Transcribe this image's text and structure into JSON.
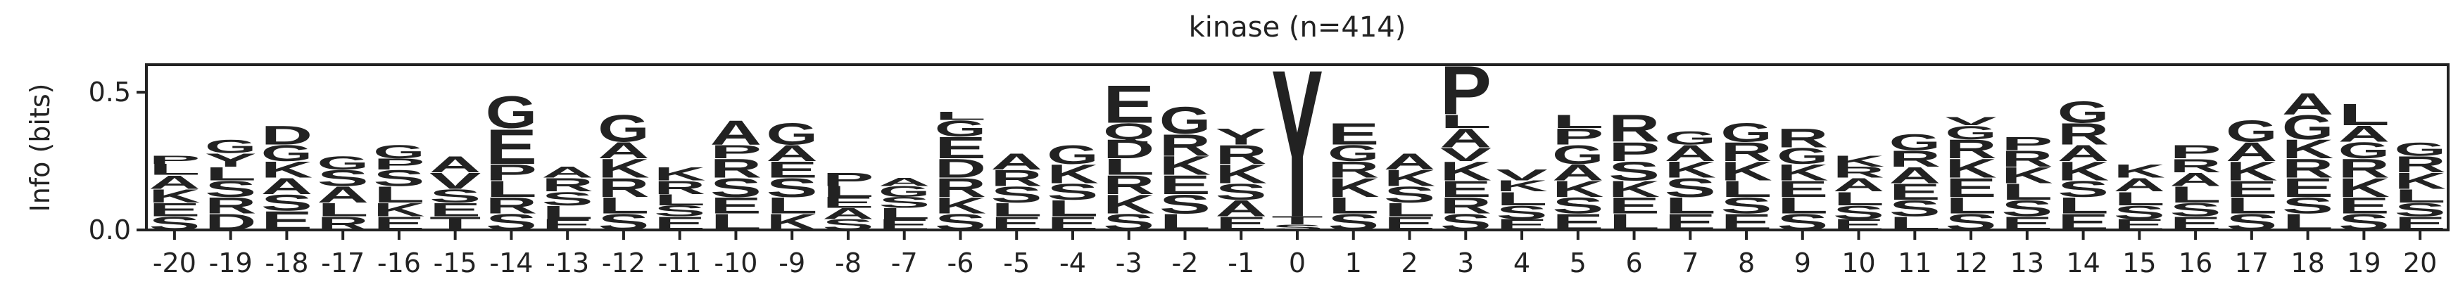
{
  "chart_data": {
    "type": "sequence-logo",
    "title": "kinase (n=414)",
    "y_label": "Info (bits)",
    "xlim": [
      -20.5,
      20.5
    ],
    "ylim": [
      0,
      0.6
    ],
    "xticks": [
      -20,
      -19,
      -18,
      -17,
      -16,
      -15,
      -14,
      -13,
      -12,
      -11,
      -10,
      -9,
      -8,
      -7,
      -6,
      -5,
      -4,
      -3,
      -2,
      -1,
      0,
      1,
      2,
      3,
      4,
      5,
      6,
      7,
      8,
      9,
      10,
      11,
      12,
      13,
      14,
      15,
      16,
      17,
      18,
      19,
      20
    ],
    "yticks": [
      {
        "value": 0,
        "label": "0.0"
      },
      0.5
    ],
    "colors": {
      "G": "#0c8a0c",
      "A": "#0c8a0c",
      "S": "#2ca02c",
      "T": "#2ca02c",
      "E": "#e31a1c",
      "D": "#e31a1c",
      "K": "#1f3fd6",
      "R": "#1f3fd6",
      "P": "#000000",
      "L": "#d4a017",
      "V": "#d4a017",
      "Y": "#d4a017",
      "Q": "#9b30d9"
    },
    "highlight_position": 0,
    "highlight_color": "#8b3a0f",
    "positions": [
      {
        "x": -20,
        "letters": [
          "S",
          "E",
          "K",
          "A",
          "L",
          "P"
        ],
        "heights": [
          0.05,
          0.05,
          0.05,
          0.05,
          0.04,
          0.03
        ]
      },
      {
        "x": -19,
        "letters": [
          "D",
          "R",
          "S",
          "L",
          "Y",
          "G"
        ],
        "heights": [
          0.06,
          0.06,
          0.06,
          0.05,
          0.05,
          0.05
        ]
      },
      {
        "x": -18,
        "letters": [
          "E",
          "S",
          "A",
          "K",
          "G",
          "D"
        ],
        "heights": [
          0.07,
          0.06,
          0.06,
          0.06,
          0.06,
          0.07
        ]
      },
      {
        "x": -17,
        "letters": [
          "R",
          "L",
          "A",
          "S",
          "G"
        ],
        "heights": [
          0.05,
          0.05,
          0.06,
          0.06,
          0.05
        ]
      },
      {
        "x": -16,
        "letters": [
          "E",
          "K",
          "L",
          "S",
          "P",
          "G"
        ],
        "heights": [
          0.05,
          0.05,
          0.06,
          0.06,
          0.04,
          0.05
        ]
      },
      {
        "x": -15,
        "letters": [
          "T",
          "E",
          "S",
          "V",
          "A"
        ],
        "heights": [
          0.05,
          0.05,
          0.05,
          0.06,
          0.06
        ]
      },
      {
        "x": -14,
        "letters": [
          "S",
          "R",
          "L",
          "P",
          "E",
          "G"
        ],
        "heights": [
          0.06,
          0.06,
          0.06,
          0.06,
          0.13,
          0.12
        ]
      },
      {
        "x": -13,
        "letters": [
          "E",
          "L",
          "S",
          "R",
          "A"
        ],
        "heights": [
          0.04,
          0.05,
          0.05,
          0.05,
          0.04
        ]
      },
      {
        "x": -12,
        "letters": [
          "S",
          "L",
          "R",
          "K",
          "A",
          "G"
        ],
        "heights": [
          0.06,
          0.06,
          0.07,
          0.07,
          0.06,
          0.1
        ]
      },
      {
        "x": -11,
        "letters": [
          "E",
          "S",
          "L",
          "R",
          "K"
        ],
        "heights": [
          0.05,
          0.04,
          0.04,
          0.05,
          0.05
        ]
      },
      {
        "x": -10,
        "letters": [
          "L",
          "E",
          "S",
          "R",
          "P",
          "A"
        ],
        "heights": [
          0.06,
          0.06,
          0.07,
          0.07,
          0.05,
          0.09
        ]
      },
      {
        "x": -9,
        "letters": [
          "K",
          "L",
          "S",
          "E",
          "A",
          "G"
        ],
        "heights": [
          0.06,
          0.06,
          0.07,
          0.06,
          0.06,
          0.08
        ]
      },
      {
        "x": -8,
        "letters": [
          "S",
          "A",
          "E",
          "L",
          "P"
        ],
        "heights": [
          0.04,
          0.04,
          0.04,
          0.04,
          0.05
        ]
      },
      {
        "x": -7,
        "letters": [
          "E",
          "L",
          "S",
          "G",
          "A"
        ],
        "heights": [
          0.04,
          0.04,
          0.04,
          0.04,
          0.03
        ]
      },
      {
        "x": -6,
        "letters": [
          "S",
          "K",
          "R",
          "D",
          "E",
          "G",
          "L"
        ],
        "heights": [
          0.06,
          0.06,
          0.07,
          0.07,
          0.08,
          0.06,
          0.03
        ]
      },
      {
        "x": -5,
        "letters": [
          "E",
          "L",
          "S",
          "R",
          "A"
        ],
        "heights": [
          0.05,
          0.05,
          0.06,
          0.06,
          0.06
        ]
      },
      {
        "x": -4,
        "letters": [
          "E",
          "L",
          "S",
          "K",
          "G"
        ],
        "heights": [
          0.05,
          0.06,
          0.06,
          0.07,
          0.07
        ]
      },
      {
        "x": -3,
        "letters": [
          "S",
          "K",
          "R",
          "L",
          "D",
          "Q",
          "E"
        ],
        "heights": [
          0.06,
          0.07,
          0.07,
          0.06,
          0.07,
          0.06,
          0.14
        ]
      },
      {
        "x": -2,
        "letters": [
          "L",
          "S",
          "E",
          "K",
          "R",
          "G"
        ],
        "heights": [
          0.06,
          0.07,
          0.07,
          0.07,
          0.08,
          0.1
        ]
      },
      {
        "x": -1,
        "letters": [
          "E",
          "A",
          "S",
          "K",
          "R",
          "Y"
        ],
        "heights": [
          0.05,
          0.06,
          0.06,
          0.07,
          0.07,
          0.06
        ]
      },
      {
        "x": 0,
        "letters": [
          "S",
          "T",
          "Y"
        ],
        "heights": [
          0.02,
          0.03,
          0.55
        ]
      },
      {
        "x": 1,
        "letters": [
          "S",
          "L",
          "K",
          "R",
          "G",
          "E"
        ],
        "heights": [
          0.06,
          0.06,
          0.07,
          0.06,
          0.06,
          0.08
        ]
      },
      {
        "x": 2,
        "letters": [
          "E",
          "L",
          "S",
          "K",
          "A"
        ],
        "heights": [
          0.05,
          0.05,
          0.06,
          0.06,
          0.06
        ]
      },
      {
        "x": 3,
        "letters": [
          "S",
          "R",
          "E",
          "K",
          "V",
          "A",
          "L",
          "P"
        ],
        "heights": [
          0.06,
          0.06,
          0.06,
          0.07,
          0.05,
          0.07,
          0.05,
          0.18
        ]
      },
      {
        "x": 4,
        "letters": [
          "E",
          "S",
          "L",
          "K",
          "V"
        ],
        "heights": [
          0.04,
          0.05,
          0.05,
          0.04,
          0.04
        ]
      },
      {
        "x": 5,
        "letters": [
          "E",
          "S",
          "K",
          "A",
          "G",
          "P",
          "L"
        ],
        "heights": [
          0.06,
          0.06,
          0.06,
          0.06,
          0.07,
          0.06,
          0.05
        ]
      },
      {
        "x": 6,
        "letters": [
          "L",
          "E",
          "K",
          "S",
          "P",
          "R"
        ],
        "heights": [
          0.06,
          0.06,
          0.06,
          0.07,
          0.07,
          0.1
        ]
      },
      {
        "x": 7,
        "letters": [
          "E",
          "L",
          "S",
          "K",
          "A",
          "G"
        ],
        "heights": [
          0.06,
          0.06,
          0.07,
          0.06,
          0.06,
          0.05
        ]
      },
      {
        "x": 8,
        "letters": [
          "E",
          "S",
          "L",
          "K",
          "R",
          "G"
        ],
        "heights": [
          0.06,
          0.06,
          0.06,
          0.07,
          0.07,
          0.07
        ]
      },
      {
        "x": 9,
        "letters": [
          "S",
          "L",
          "E",
          "K",
          "G",
          "R"
        ],
        "heights": [
          0.06,
          0.06,
          0.06,
          0.06,
          0.06,
          0.07
        ]
      },
      {
        "x": 10,
        "letters": [
          "E",
          "S",
          "L",
          "A",
          "R",
          "K"
        ],
        "heights": [
          0.04,
          0.05,
          0.05,
          0.05,
          0.04,
          0.04
        ]
      },
      {
        "x": 11,
        "letters": [
          "L",
          "S",
          "E",
          "A",
          "R",
          "G"
        ],
        "heights": [
          0.05,
          0.06,
          0.06,
          0.06,
          0.06,
          0.06
        ]
      },
      {
        "x": 12,
        "letters": [
          "S",
          "L",
          "E",
          "K",
          "R",
          "G",
          "V"
        ],
        "heights": [
          0.06,
          0.06,
          0.07,
          0.07,
          0.07,
          0.05,
          0.03
        ]
      },
      {
        "x": 13,
        "letters": [
          "E",
          "S",
          "L",
          "K",
          "R",
          "P"
        ],
        "heights": [
          0.05,
          0.06,
          0.06,
          0.06,
          0.06,
          0.05
        ]
      },
      {
        "x": 14,
        "letters": [
          "E",
          "L",
          "S",
          "K",
          "A",
          "R",
          "G"
        ],
        "heights": [
          0.06,
          0.06,
          0.06,
          0.07,
          0.06,
          0.08,
          0.08
        ]
      },
      {
        "x": 15,
        "letters": [
          "E",
          "S",
          "L",
          "A",
          "K"
        ],
        "heights": [
          0.04,
          0.05,
          0.05,
          0.05,
          0.05
        ]
      },
      {
        "x": 16,
        "letters": [
          "E",
          "S",
          "L",
          "A",
          "R",
          "P"
        ],
        "heights": [
          0.05,
          0.05,
          0.06,
          0.05,
          0.05,
          0.05
        ]
      },
      {
        "x": 17,
        "letters": [
          "S",
          "L",
          "E",
          "K",
          "A",
          "G"
        ],
        "heights": [
          0.06,
          0.06,
          0.06,
          0.07,
          0.07,
          0.08
        ]
      },
      {
        "x": 18,
        "letters": [
          "L",
          "S",
          "E",
          "R",
          "K",
          "G",
          "A"
        ],
        "heights": [
          0.06,
          0.06,
          0.07,
          0.07,
          0.07,
          0.09,
          0.08
        ]
      },
      {
        "x": 19,
        "letters": [
          "S",
          "E",
          "K",
          "R",
          "G",
          "A",
          "L"
        ],
        "heights": [
          0.06,
          0.06,
          0.07,
          0.07,
          0.06,
          0.06,
          0.08
        ]
      },
      {
        "x": 20,
        "letters": [
          "E",
          "S",
          "L",
          "K",
          "R",
          "G"
        ],
        "heights": [
          0.05,
          0.05,
          0.05,
          0.06,
          0.06,
          0.05
        ]
      }
    ]
  }
}
